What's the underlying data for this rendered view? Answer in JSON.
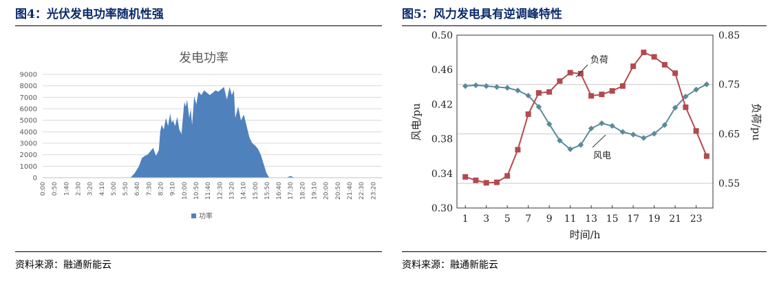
{
  "left": {
    "figure_title": "图4：光伏发电功率随机性强",
    "source": "资料来源：融通新能云"
  },
  "right": {
    "figure_title": "图5：风力发电具有逆调峰特性",
    "source": "资料来源：融通新能云"
  },
  "colors": {
    "title_blue": "#0a2a6b",
    "solar_fill": "#4f81bd",
    "wind_line": "#5b8a9a",
    "load_line": "#b24a4f"
  },
  "chart_data": [
    {
      "type": "area",
      "title": "发电功率",
      "legend": [
        "功率"
      ],
      "legend_position": "bottom",
      "ylim": [
        0,
        9000
      ],
      "yticks": [
        "0",
        "1000",
        "2000",
        "3000",
        "4000",
        "5000",
        "6000",
        "7000",
        "8000",
        "9000"
      ],
      "xticks": [
        "0:00",
        "0:50",
        "1:40",
        "2:30",
        "3:20",
        "4:10",
        "5:00",
        "5:50",
        "6:40",
        "7:30",
        "8:20",
        "9:10",
        "10:00",
        "10:50",
        "11:40",
        "12:30",
        "13:20",
        "14:10",
        "15:00",
        "15:50",
        "16:40",
        "17:30",
        "18:20",
        "19:10",
        "20:00",
        "20:50",
        "21:40",
        "22:30",
        "23:20"
      ],
      "grid": true,
      "series": [
        {
          "name": "功率",
          "x_hours": [
            0,
            6.2,
            6.5,
            6.8,
            7.0,
            7.2,
            7.4,
            7.6,
            7.8,
            8.0,
            8.2,
            8.3,
            8.4,
            8.55,
            8.7,
            8.85,
            9.0,
            9.1,
            9.2,
            9.35,
            9.5,
            9.65,
            9.8,
            10.0,
            10.1,
            10.2,
            10.35,
            10.45,
            10.55,
            10.7,
            10.85,
            11.0,
            11.2,
            11.4,
            11.6,
            11.8,
            12.0,
            12.2,
            12.4,
            12.6,
            12.8,
            13.0,
            13.2,
            13.35,
            13.5,
            13.6,
            13.8,
            14.0,
            14.2,
            14.4,
            14.6,
            14.8,
            15.0,
            15.2,
            15.4,
            15.6,
            15.8,
            16.0,
            16.1,
            17.2,
            17.5,
            17.8,
            24
          ],
          "values": [
            0,
            0,
            400,
            1000,
            1700,
            1900,
            2000,
            2300,
            2600,
            1900,
            2400,
            4000,
            4600,
            4200,
            5200,
            4500,
            5600,
            4800,
            5000,
            4500,
            5300,
            4200,
            3800,
            6600,
            6200,
            6800,
            5200,
            6000,
            4600,
            7100,
            6400,
            7500,
            7200,
            7600,
            7400,
            7200,
            7400,
            7600,
            7500,
            7700,
            7900,
            6800,
            7900,
            7200,
            7600,
            5200,
            6200,
            5000,
            5500,
            4500,
            3500,
            3000,
            2800,
            2500,
            2000,
            1200,
            400,
            0,
            0,
            0,
            150,
            0,
            0
          ]
        }
      ]
    },
    {
      "type": "line",
      "xlabel": "时间/h",
      "ylabel": "风电/pu",
      "y2label": "负荷/pu",
      "xlim": [
        1,
        24
      ],
      "ylim": [
        0.3,
        0.5
      ],
      "y2lim": [
        0.5,
        0.85
      ],
      "xticks": [
        "1",
        "3",
        "5",
        "7",
        "9",
        "11",
        "13",
        "15",
        "17",
        "19",
        "21",
        "23"
      ],
      "yticks": [
        "0.30",
        "0.34",
        "0.38",
        "0.42",
        "0.46",
        "0.50"
      ],
      "y2ticks": [
        "0.55",
        "0.65",
        "0.75",
        "0.85"
      ],
      "grid": true,
      "series": [
        {
          "name": "风电",
          "axis": "left",
          "marker": "diamond",
          "x": [
            1,
            2,
            3,
            4,
            5,
            6,
            7,
            8,
            9,
            10,
            11,
            12,
            13,
            14,
            15,
            16,
            17,
            18,
            19,
            20,
            21,
            22,
            23,
            24
          ],
          "values": [
            0.441,
            0.442,
            0.441,
            0.44,
            0.439,
            0.436,
            0.43,
            0.417,
            0.397,
            0.378,
            0.368,
            0.373,
            0.392,
            0.398,
            0.395,
            0.388,
            0.385,
            0.381,
            0.386,
            0.396,
            0.416,
            0.429,
            0.437,
            0.443
          ]
        },
        {
          "name": "负荷",
          "axis": "right",
          "marker": "square",
          "x": [
            1,
            2,
            3,
            4,
            5,
            6,
            7,
            8,
            9,
            10,
            11,
            12,
            13,
            14,
            15,
            16,
            17,
            18,
            19,
            20,
            21,
            22,
            23,
            24
          ],
          "values": [
            0.563,
            0.556,
            0.551,
            0.552,
            0.565,
            0.618,
            0.69,
            0.733,
            0.735,
            0.757,
            0.774,
            0.772,
            0.727,
            0.73,
            0.737,
            0.747,
            0.787,
            0.815,
            0.806,
            0.79,
            0.773,
            0.704,
            0.656,
            0.605
          ]
        }
      ]
    }
  ]
}
